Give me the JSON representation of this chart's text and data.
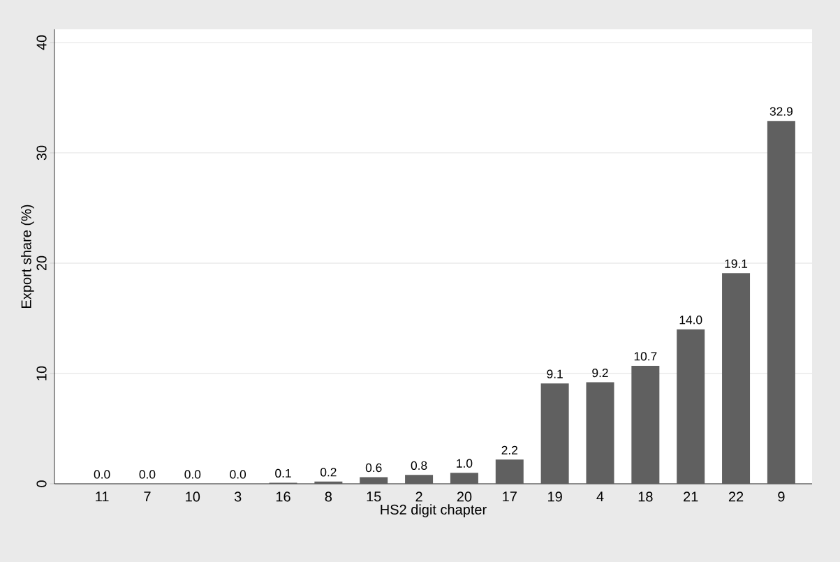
{
  "chart_data": {
    "type": "bar",
    "xlabel": "HS2 digit chapter",
    "ylabel": "Export share (%)",
    "categories": [
      "11",
      "7",
      "10",
      "3",
      "16",
      "8",
      "15",
      "2",
      "20",
      "17",
      "19",
      "4",
      "18",
      "21",
      "22",
      "9"
    ],
    "values": [
      0.0,
      0.0,
      0.0,
      0.0,
      0.1,
      0.2,
      0.6,
      0.8,
      1.0,
      2.2,
      9.1,
      9.2,
      10.7,
      14.0,
      19.1,
      32.9
    ],
    "value_labels": [
      "0.0",
      "0.0",
      "0.0",
      "0.0",
      "0.1",
      "0.2",
      "0.6",
      "0.8",
      "1.0",
      "2.2",
      "9.1",
      "9.2",
      "10.7",
      "14.0",
      "19.1",
      "32.9"
    ],
    "color": "#606060",
    "ylim": [
      0,
      41.2
    ],
    "yticks": [
      0,
      10,
      20,
      30,
      40
    ],
    "grid": "y"
  }
}
